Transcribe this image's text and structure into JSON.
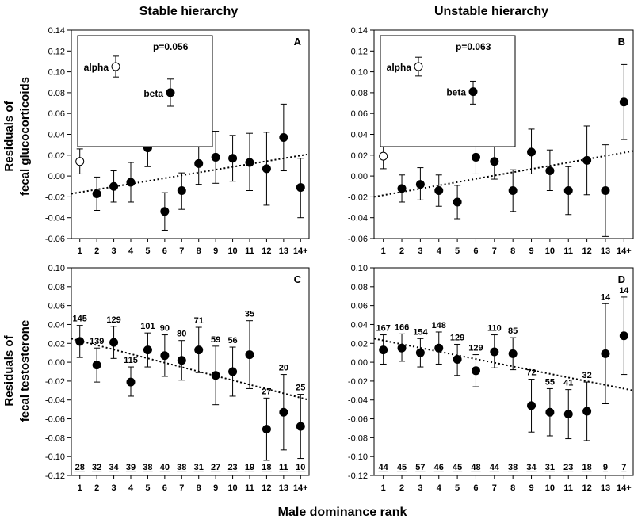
{
  "figure": {
    "column_titles": [
      "Stable hierarchy",
      "Unstable hierarchy"
    ],
    "row_labels": [
      [
        "Residuals of",
        "fecal glucocorticoids"
      ],
      [
        "Residuals of",
        "fecal testosterone"
      ]
    ],
    "xlabel": "Male dominance rank"
  },
  "chart_data": [
    {
      "type": "scatter",
      "panel": "A",
      "title": "Stable hierarchy",
      "ylabel": "Residuals of fecal glucocorticoids",
      "ylim": [
        -0.06,
        0.14
      ],
      "yticks": [
        "-0.06",
        "-0.04",
        "-0.02",
        "0.00",
        "0.02",
        "0.04",
        "0.06",
        "0.08",
        "0.10",
        "0.12",
        "0.14"
      ],
      "categories": [
        "1",
        "2",
        "3",
        "4",
        "5",
        "6",
        "7",
        "8",
        "9",
        "10",
        "11",
        "12",
        "13",
        "14+"
      ],
      "means": [
        0.014,
        -0.017,
        -0.01,
        -0.006,
        0.027,
        -0.034,
        -0.014,
        0.012,
        0.018,
        0.017,
        0.013,
        0.007,
        0.037,
        -0.011
      ],
      "err_low": [
        0.002,
        -0.033,
        -0.025,
        -0.025,
        0.009,
        -0.052,
        -0.032,
        -0.008,
        -0.007,
        -0.005,
        -0.014,
        -0.028,
        0.005,
        -0.04
      ],
      "err_high": [
        0.026,
        -0.001,
        0.005,
        0.013,
        0.045,
        -0.016,
        0.003,
        0.032,
        0.043,
        0.039,
        0.041,
        0.042,
        0.069,
        0.017
      ],
      "open_markers": [
        "1"
      ],
      "trend": {
        "y_start": -0.017,
        "y_end": 0.021
      },
      "inset": {
        "p_label": "p=0.056",
        "points": [
          {
            "label": "alpha",
            "mean": 0.105,
            "low": 0.095,
            "high": 0.115,
            "open": true
          },
          {
            "label": "beta",
            "mean": 0.08,
            "low": 0.067,
            "high": 0.093,
            "open": false
          }
        ]
      }
    },
    {
      "type": "scatter",
      "panel": "B",
      "title": "Unstable hierarchy",
      "ylabel": "Residuals of fecal glucocorticoids",
      "ylim": [
        -0.06,
        0.14
      ],
      "yticks": [
        "-0.06",
        "-0.04",
        "-0.02",
        "0.00",
        "0.02",
        "0.04",
        "0.06",
        "0.08",
        "0.10",
        "0.12",
        "0.14"
      ],
      "categories": [
        "1",
        "2",
        "3",
        "4",
        "5",
        "6",
        "7",
        "8",
        "9",
        "10",
        "11",
        "12",
        "13",
        "14+"
      ],
      "means": [
        0.019,
        -0.012,
        -0.008,
        -0.014,
        -0.025,
        0.018,
        0.014,
        -0.014,
        0.023,
        0.005,
        -0.014,
        0.015,
        -0.014,
        0.071
      ],
      "err_low": [
        0.007,
        -0.025,
        -0.023,
        -0.029,
        -0.041,
        0.002,
        -0.003,
        -0.034,
        0.002,
        -0.014,
        -0.037,
        -0.018,
        -0.058,
        0.035
      ],
      "err_high": [
        0.031,
        0.001,
        0.008,
        0.001,
        -0.009,
        0.034,
        0.031,
        0.006,
        0.045,
        0.025,
        0.009,
        0.048,
        0.03,
        0.107
      ],
      "open_markers": [
        "1"
      ],
      "trend": {
        "y_start": -0.02,
        "y_end": 0.024
      },
      "inset": {
        "p_label": "p=0.063",
        "points": [
          {
            "label": "alpha",
            "mean": 0.105,
            "low": 0.096,
            "high": 0.114,
            "open": true
          },
          {
            "label": "beta",
            "mean": 0.081,
            "low": 0.069,
            "high": 0.091,
            "open": false
          }
        ]
      }
    },
    {
      "type": "scatter",
      "panel": "C",
      "ylabel": "Residuals of fecal testosterone",
      "ylim": [
        -0.12,
        0.1
      ],
      "yticks": [
        "-0.12",
        "-0.10",
        "-0.08",
        "-0.06",
        "-0.04",
        "-0.02",
        "0.00",
        "0.02",
        "0.04",
        "0.06",
        "0.08",
        "0.10"
      ],
      "categories": [
        "1",
        "2",
        "3",
        "4",
        "5",
        "6",
        "7",
        "8",
        "9",
        "10",
        "11",
        "12",
        "13",
        "14+"
      ],
      "means": [
        0.022,
        -0.003,
        0.021,
        -0.021,
        0.013,
        0.007,
        0.002,
        0.013,
        -0.014,
        -0.01,
        0.008,
        -0.071,
        -0.053,
        -0.068
      ],
      "err_low": [
        0.005,
        -0.021,
        0.004,
        -0.036,
        -0.005,
        -0.015,
        -0.019,
        -0.011,
        -0.045,
        -0.036,
        -0.028,
        -0.104,
        -0.093,
        -0.102
      ],
      "err_high": [
        0.039,
        0.015,
        0.038,
        -0.005,
        0.031,
        0.029,
        0.023,
        0.037,
        0.017,
        0.016,
        0.044,
        -0.038,
        -0.013,
        -0.034
      ],
      "top_labels": [
        "145",
        "139",
        "129",
        "115",
        "101",
        "90",
        "80",
        "71",
        "59",
        "56",
        "35",
        "27",
        "20",
        "25"
      ],
      "bottom_labels": [
        "28",
        "32",
        "34",
        "39",
        "38",
        "40",
        "38",
        "31",
        "27",
        "23",
        "19",
        "18",
        "11",
        "10"
      ],
      "trend": {
        "y_start": 0.025,
        "y_end": -0.04
      }
    },
    {
      "type": "scatter",
      "panel": "D",
      "ylabel": "Residuals of fecal testosterone",
      "ylim": [
        -0.12,
        0.1
      ],
      "yticks": [
        "-0.12",
        "-0.10",
        "-0.08",
        "-0.06",
        "-0.04",
        "-0.02",
        "0.00",
        "0.02",
        "0.04",
        "0.06",
        "0.08",
        "0.10"
      ],
      "categories": [
        "1",
        "2",
        "3",
        "4",
        "5",
        "6",
        "7",
        "8",
        "9",
        "10",
        "11",
        "12",
        "13",
        "14+"
      ],
      "means": [
        0.013,
        0.015,
        0.01,
        0.015,
        0.003,
        -0.009,
        0.011,
        0.009,
        -0.046,
        -0.053,
        -0.055,
        -0.052,
        0.009,
        0.028
      ],
      "err_low": [
        -0.002,
        0.001,
        -0.005,
        -0.002,
        -0.014,
        -0.026,
        -0.006,
        -0.008,
        -0.074,
        -0.078,
        -0.081,
        -0.083,
        -0.044,
        -0.013
      ],
      "err_high": [
        0.029,
        0.03,
        0.025,
        0.032,
        0.019,
        0.008,
        0.029,
        0.026,
        -0.018,
        -0.028,
        -0.029,
        -0.021,
        0.062,
        0.069
      ],
      "top_labels": [
        "167",
        "166",
        "154",
        "148",
        "129",
        "129",
        "110",
        "85",
        "72",
        "55",
        "41",
        "32",
        "14",
        "14"
      ],
      "bottom_labels": [
        "44",
        "45",
        "57",
        "46",
        "45",
        "48",
        "44",
        "38",
        "34",
        "31",
        "23",
        "18",
        "9",
        "7"
      ],
      "trend": {
        "y_start": 0.025,
        "y_end": -0.03
      }
    }
  ]
}
